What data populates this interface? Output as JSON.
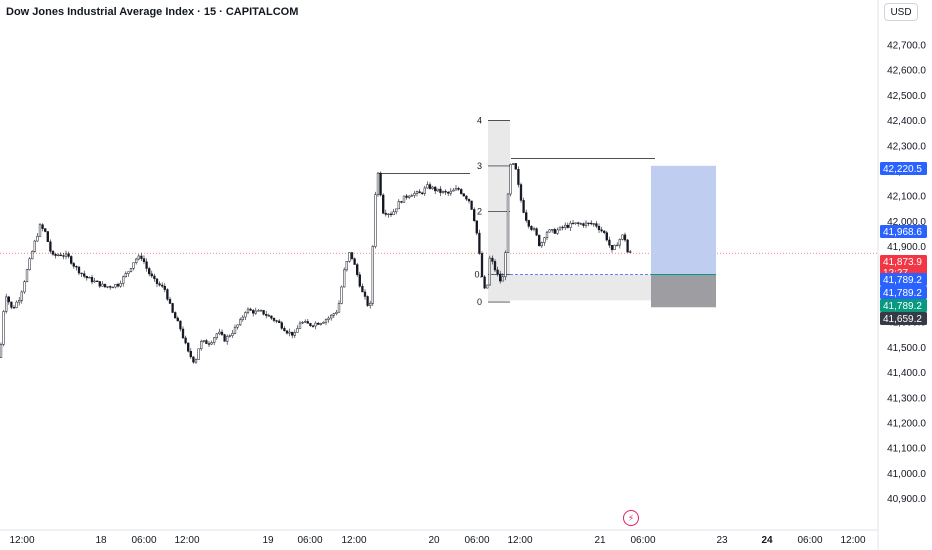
{
  "header": {
    "title": "Dow Jones Industrial Average Index · 15 · CAPITALCOM",
    "currency": "USD"
  },
  "colors": {
    "candle": "#131722",
    "current_price_line": "#f23645",
    "target_zone": "#bfcdf1",
    "stop_zone": "#9e9ea2",
    "range_box": "#e9e9ea",
    "entry_line": "#2962ff",
    "label_blue": "#2962ff",
    "label_red": "#f23645",
    "label_green": "#089981",
    "label_dark": "#363a45"
  },
  "y_axis": {
    "ticks": [
      "42,700.0",
      "42,600.0",
      "42,500.0",
      "42,400.0",
      "42,300.0",
      "42,200.0",
      "42,100.0",
      "42,000.0",
      "41,900.0",
      "41,600.0",
      "41,500.0",
      "41,400.0",
      "41,300.0",
      "41,200.0",
      "41,100.0",
      "41,000.0",
      "40,900.0"
    ]
  },
  "x_axis": {
    "ticks": [
      "12:00",
      "18",
      "06:00",
      "12:00",
      "19",
      "06:00",
      "12:00",
      "20",
      "06:00",
      "12:00",
      "21",
      "06:00",
      "23",
      "24",
      "06:00",
      "12:00"
    ]
  },
  "price_labels": [
    {
      "text": "42,220.5",
      "color": "#2962ff"
    },
    {
      "text": "41,968.6",
      "color": "#2962ff"
    },
    {
      "text": "41,873.9",
      "sub": "12:27",
      "color": "#f23645"
    },
    {
      "text": "41,789.2",
      "color": "#2962ff"
    },
    {
      "text": "41,789.2",
      "color": "#2962ff"
    },
    {
      "text": "41,789.2",
      "color": "#089981"
    },
    {
      "text": "41,659.2",
      "color": "#363a45"
    }
  ],
  "fib_labels": [
    "4",
    "3",
    "2",
    "0.",
    "0"
  ],
  "chart_data": {
    "type": "candlestick",
    "title": "Dow Jones Industrial Average Index · 15 · CAPITALCOM",
    "ylim": [
      40850,
      42800
    ],
    "current_price": 41873.9,
    "close_path": [
      [
        0,
        41460
      ],
      [
        5,
        41720
      ],
      [
        12,
        41650
      ],
      [
        20,
        41700
      ],
      [
        28,
        41820
      ],
      [
        35,
        41920
      ],
      [
        40,
        41980
      ],
      [
        45,
        41960
      ],
      [
        52,
        41860
      ],
      [
        60,
        41870
      ],
      [
        68,
        41860
      ],
      [
        75,
        41820
      ],
      [
        85,
        41780
      ],
      [
        95,
        41760
      ],
      [
        105,
        41740
      ],
      [
        118,
        41750
      ],
      [
        128,
        41800
      ],
      [
        135,
        41850
      ],
      [
        142,
        41860
      ],
      [
        148,
        41800
      ],
      [
        155,
        41760
      ],
      [
        165,
        41730
      ],
      [
        172,
        41640
      ],
      [
        180,
        41580
      ],
      [
        188,
        41480
      ],
      [
        195,
        41440
      ],
      [
        200,
        41520
      ],
      [
        210,
        41520
      ],
      [
        218,
        41560
      ],
      [
        225,
        41530
      ],
      [
        232,
        41560
      ],
      [
        240,
        41600
      ],
      [
        246,
        41650
      ],
      [
        255,
        41640
      ],
      [
        262,
        41640
      ],
      [
        270,
        41620
      ],
      [
        278,
        41600
      ],
      [
        288,
        41560
      ],
      [
        295,
        41550
      ],
      [
        300,
        41600
      ],
      [
        310,
        41590
      ],
      [
        320,
        41600
      ],
      [
        330,
        41620
      ],
      [
        338,
        41650
      ],
      [
        344,
        41800
      ],
      [
        350,
        41880
      ],
      [
        355,
        41820
      ],
      [
        362,
        41720
      ],
      [
        370,
        41650
      ],
      [
        375,
        42100
      ],
      [
        378,
        42190
      ],
      [
        383,
        42040
      ],
      [
        392,
        42030
      ],
      [
        400,
        42080
      ],
      [
        410,
        42110
      ],
      [
        420,
        42110
      ],
      [
        428,
        42140
      ],
      [
        438,
        42120
      ],
      [
        448,
        42110
      ],
      [
        458,
        42130
      ],
      [
        465,
        42100
      ],
      [
        470,
        42080
      ],
      [
        476,
        41980
      ],
      [
        482,
        41780
      ],
      [
        486,
        41700
      ],
      [
        490,
        41860
      ],
      [
        496,
        41800
      ],
      [
        502,
        41750
      ],
      [
        505,
        41850
      ],
      [
        508,
        42100
      ],
      [
        511,
        42240
      ],
      [
        516,
        42200
      ],
      [
        520,
        42100
      ],
      [
        525,
        42020
      ],
      [
        530,
        41980
      ],
      [
        535,
        41960
      ],
      [
        540,
        41900
      ],
      [
        546,
        41960
      ],
      [
        555,
        41960
      ],
      [
        565,
        41980
      ],
      [
        575,
        41990
      ],
      [
        585,
        41990
      ],
      [
        595,
        41990
      ],
      [
        605,
        41950
      ],
      [
        612,
        41880
      ],
      [
        618,
        41920
      ],
      [
        624,
        41950
      ],
      [
        628,
        41870
      ],
      [
        632,
        41880
      ]
    ],
    "annotations": {
      "fib_levels": [
        {
          "label": "4",
          "value": 42400
        },
        {
          "label": "3",
          "value": 42220
        },
        {
          "label": "2",
          "value": 42040
        },
        {
          "label": "0.",
          "value": 41790
        },
        {
          "label": "0",
          "value": 41680
        }
      ],
      "swing_high_1": 42190,
      "swing_high_2": 42250,
      "long_position": {
        "entry": 41789.2,
        "target": 42220.5,
        "stop": 41659.2
      }
    }
  }
}
